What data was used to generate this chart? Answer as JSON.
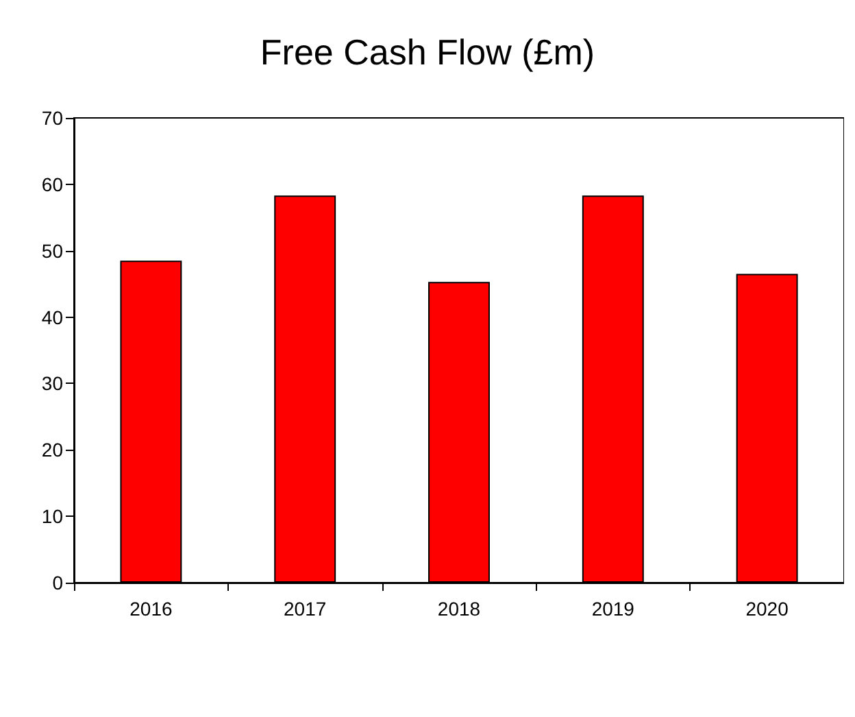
{
  "chart_data": {
    "type": "bar",
    "title": "Free Cash Flow (£m)",
    "categories": [
      "2016",
      "2017",
      "2018",
      "2019",
      "2020"
    ],
    "series": [
      {
        "color": "#ff0000",
        "values": [
          48.5,
          58.3,
          45.3,
          58.3,
          46.5
        ]
      }
    ],
    "ylim": [
      0,
      70
    ],
    "yticks": [
      0,
      10,
      20,
      30,
      40,
      50,
      60,
      70
    ],
    "grid": false
  }
}
